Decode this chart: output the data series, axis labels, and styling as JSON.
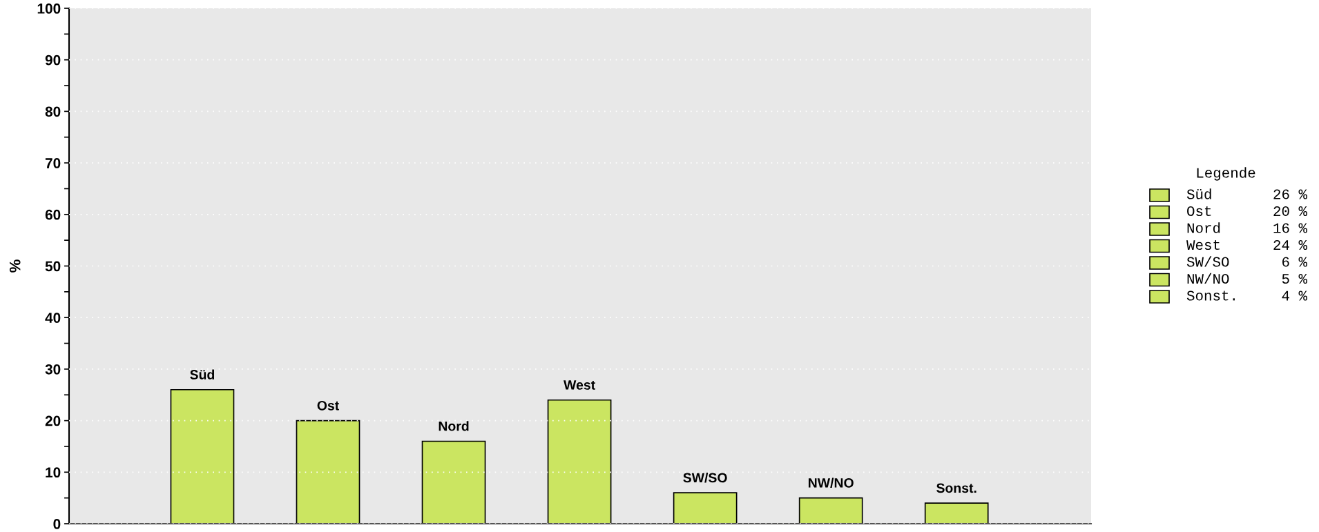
{
  "chart_data": {
    "type": "bar",
    "ylabel": "%",
    "categories": [
      "Süd",
      "Ost",
      "Nord",
      "West",
      "SW/SO",
      "NW/NO",
      "Sonst."
    ],
    "values": [
      26,
      20,
      16,
      24,
      6,
      5,
      4
    ],
    "colors": [
      "#cbe561",
      "#cbe561",
      "#cbe561",
      "#cbe561",
      "#cbe561",
      "#cbe561",
      "#cbe561"
    ],
    "ylim": [
      0,
      100
    ],
    "yticks": [
      0,
      {
        "value": 5,
        "label": null
      },
      10,
      {
        "value": 15,
        "label": null
      },
      20,
      {
        "value": 25,
        "label": null
      },
      30,
      {
        "value": 35,
        "label": null
      },
      40,
      {
        "value": 45,
        "label": null
      },
      50,
      {
        "value": 55,
        "label": null
      },
      60,
      {
        "value": 65,
        "label": null
      },
      70,
      {
        "value": 75,
        "label": null
      },
      80,
      {
        "value": 85,
        "label": null
      },
      90,
      {
        "value": 95,
        "label": null
      },
      100
    ],
    "grid": "y",
    "annotations": [
      "Legende",
      "Süd",
      "26 %",
      "Ost",
      "20 %",
      "Nord",
      "16 %",
      "West",
      "24 %",
      "SW/SO",
      "6 %",
      "NW/NO",
      "5 %",
      "Sonst.",
      "4 %"
    ]
  }
}
